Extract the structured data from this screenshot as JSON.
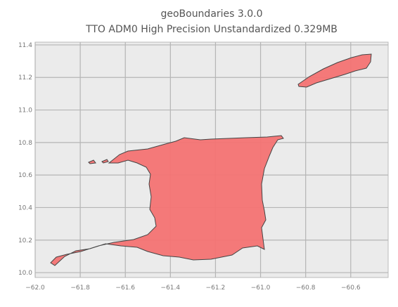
{
  "chart_data": {
    "type": "map",
    "title": "geoBoundaries 3.0.0",
    "subtitle": "TTO ADM0 High Precision Unstandardized 0.329MB",
    "xlim": [
      -62.0,
      -60.434
    ],
    "ylim": [
      9.97,
      11.417
    ],
    "xticks": [
      {
        "value": -62.0,
        "label": "−62.0"
      },
      {
        "value": -61.8,
        "label": "−61.8"
      },
      {
        "value": -61.6,
        "label": "−61.6"
      },
      {
        "value": -61.4,
        "label": "−61.4"
      },
      {
        "value": -61.2,
        "label": "−61.2"
      },
      {
        "value": -61.0,
        "label": "−61.0"
      },
      {
        "value": -60.8,
        "label": "−60.8"
      },
      {
        "value": -60.6,
        "label": "−60.6"
      }
    ],
    "yticks": [
      {
        "value": 10.0,
        "label": "10.0"
      },
      {
        "value": 10.2,
        "label": "10.2"
      },
      {
        "value": 10.4,
        "label": "10.4"
      },
      {
        "value": 10.6,
        "label": "10.6"
      },
      {
        "value": 10.8,
        "label": "10.8"
      },
      {
        "value": 11.0,
        "label": "11.0"
      },
      {
        "value": 11.2,
        "label": "11.2"
      },
      {
        "value": 11.4,
        "label": "11.4"
      }
    ],
    "grid": true,
    "color": "#f47373"
  }
}
